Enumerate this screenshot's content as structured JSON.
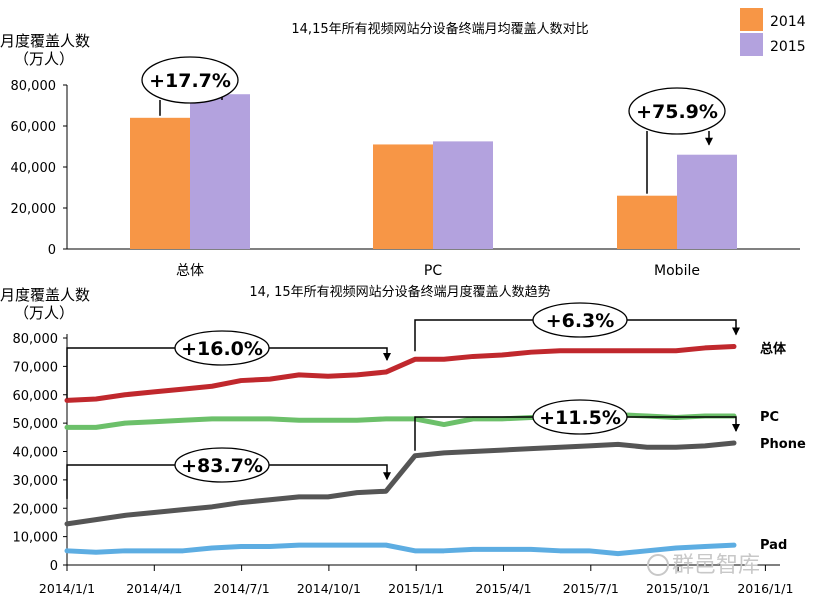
{
  "chart_data": [
    {
      "type": "bar",
      "title": "14,15年所有视频网站分设备终端月均覆盖人数对比",
      "ylabel": "月度覆盖人数（万人）",
      "ylabel_line1": "月度覆盖人数",
      "ylabel_line2": "（万人）",
      "categories": [
        "总体",
        "PC",
        "Mobile"
      ],
      "series": [
        {
          "name": "2014",
          "color": "#F79646",
          "values": [
            64000,
            51000,
            26000
          ]
        },
        {
          "name": "2015",
          "color": "#B3A2DE",
          "values": [
            75500,
            52500,
            46000
          ]
        }
      ],
      "ylim": [
        0,
        80000
      ],
      "yticks": [
        "0",
        "20,000",
        "40,000",
        "60,000",
        "80,000"
      ],
      "legend": "top-right",
      "grid": false,
      "annotations": [
        {
          "category": "总体",
          "text": "+17.7%"
        },
        {
          "category": "Mobile",
          "text": "+75.9%"
        }
      ]
    },
    {
      "type": "line",
      "title": "14, 15年所有视频网站分设备终端月度覆盖人数趋势",
      "ylabel_line1": "月度覆盖人数",
      "ylabel_line2": "（万人）",
      "x": [
        "2014/1",
        "2014/2",
        "2014/3",
        "2014/4",
        "2014/5",
        "2014/6",
        "2014/7",
        "2014/8",
        "2014/9",
        "2014/10",
        "2014/11",
        "2014/12",
        "2015/1",
        "2015/2",
        "2015/3",
        "2015/4",
        "2015/5",
        "2015/6",
        "2015/7",
        "2015/8",
        "2015/9",
        "2015/10",
        "2015/11",
        "2015/12"
      ],
      "xticks": [
        "2014/1/1",
        "2014/4/1",
        "2014/7/1",
        "2014/10/1",
        "2015/1/1",
        "2015/4/1",
        "2015/7/1",
        "2015/10/1",
        "2016/1/1"
      ],
      "yticks": [
        "0",
        "10,000",
        "20,000",
        "30,000",
        "40,000",
        "50,000",
        "60,000",
        "70,000",
        "80,000"
      ],
      "ylim": [
        0,
        80000
      ],
      "grid": false,
      "series": [
        {
          "name": "总体",
          "color": "#C0282D",
          "values": [
            58000,
            58500,
            60000,
            61000,
            62000,
            63000,
            65000,
            65500,
            67000,
            66500,
            67000,
            68000,
            72500,
            72500,
            73500,
            74000,
            75000,
            75500,
            75500,
            75500,
            75500,
            75500,
            76500,
            77000
          ]
        },
        {
          "name": "PC",
          "color": "#6CC06A",
          "values": [
            48500,
            48500,
            50000,
            50500,
            51000,
            51500,
            51500,
            51500,
            51000,
            51000,
            51000,
            51500,
            51500,
            49500,
            51500,
            51500,
            52000,
            52000,
            52500,
            53000,
            52500,
            52000,
            52500,
            52500
          ]
        },
        {
          "name": "Phone",
          "color": "#555555",
          "values": [
            14500,
            16000,
            17500,
            18500,
            19500,
            20500,
            22000,
            23000,
            24000,
            24000,
            25500,
            26000,
            38500,
            39500,
            40000,
            40500,
            41000,
            41500,
            42000,
            42500,
            41500,
            41500,
            42000,
            43000
          ]
        },
        {
          "name": "Pad",
          "color": "#5DADE2",
          "values": [
            5000,
            4500,
            5000,
            5000,
            5000,
            6000,
            6500,
            6500,
            7000,
            7000,
            7000,
            7000,
            5000,
            5000,
            5500,
            5500,
            5500,
            5000,
            5000,
            4000,
            5000,
            6000,
            6500,
            7000
          ]
        }
      ],
      "annotations": [
        {
          "text": "+16.0%",
          "series": "总体"
        },
        {
          "text": "+6.3%",
          "series": "总体"
        },
        {
          "text": "+11.5%",
          "series": "Phone"
        },
        {
          "text": "+83.7%",
          "series": "Phone"
        }
      ]
    }
  ],
  "watermark": "群邑智库"
}
